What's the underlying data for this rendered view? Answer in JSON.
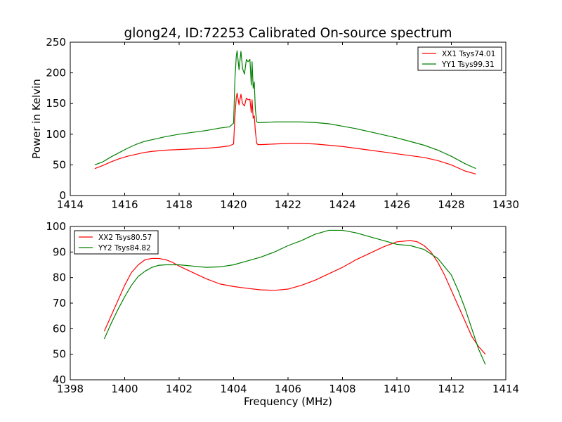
{
  "title": "glong24, ID:72253 Calibrated On-source spectrum",
  "colors": {
    "xx": "#ff0000",
    "yy": "#008000",
    "axes": "#000000",
    "background": "#ffffff"
  },
  "chart_data": [
    {
      "type": "line",
      "title": "glong24, ID:72253 Calibrated On-source spectrum",
      "xlabel": "",
      "ylabel": "Power in Kelvin",
      "xlim": [
        1414,
        1430
      ],
      "ylim": [
        0,
        250
      ],
      "xticks": [
        1414,
        1416,
        1418,
        1420,
        1422,
        1424,
        1426,
        1428,
        1430
      ],
      "yticks": [
        0,
        50,
        100,
        150,
        200,
        250
      ],
      "legend_position": "top-right",
      "grid": false,
      "series": [
        {
          "name": "XX1 Tsys74.01",
          "color": "#ff0000",
          "points": [
            [
              1414.9,
              44
            ],
            [
              1415.2,
              49
            ],
            [
              1415.5,
              55
            ],
            [
              1415.8,
              60
            ],
            [
              1416.1,
              64
            ],
            [
              1416.4,
              67
            ],
            [
              1416.7,
              70
            ],
            [
              1417.0,
              72
            ],
            [
              1417.5,
              74
            ],
            [
              1418.0,
              75
            ],
            [
              1418.5,
              76
            ],
            [
              1419.0,
              77
            ],
            [
              1419.5,
              79
            ],
            [
              1419.85,
              81
            ],
            [
              1420.0,
              84
            ],
            [
              1420.05,
              130
            ],
            [
              1420.1,
              160
            ],
            [
              1420.13,
              167
            ],
            [
              1420.2,
              148
            ],
            [
              1420.27,
              165
            ],
            [
              1420.33,
              150
            ],
            [
              1420.4,
              146
            ],
            [
              1420.47,
              159
            ],
            [
              1420.53,
              156
            ],
            [
              1420.6,
              157
            ],
            [
              1420.65,
              135
            ],
            [
              1420.68,
              156
            ],
            [
              1420.72,
              126
            ],
            [
              1420.76,
              130
            ],
            [
              1420.8,
              105
            ],
            [
              1420.85,
              85
            ],
            [
              1420.9,
              83
            ],
            [
              1421.0,
              83
            ],
            [
              1421.5,
              84
            ],
            [
              1422.0,
              85
            ],
            [
              1422.5,
              85
            ],
            [
              1423.0,
              84
            ],
            [
              1423.5,
              82
            ],
            [
              1424.0,
              80
            ],
            [
              1424.5,
              77
            ],
            [
              1425.0,
              74
            ],
            [
              1425.5,
              71
            ],
            [
              1426.0,
              68
            ],
            [
              1426.5,
              65
            ],
            [
              1427.0,
              62
            ],
            [
              1427.5,
              57
            ],
            [
              1428.0,
              50
            ],
            [
              1428.5,
              40
            ],
            [
              1428.9,
              35
            ]
          ]
        },
        {
          "name": "YY1 Tsys99.31",
          "color": "#008000",
          "points": [
            [
              1414.9,
              50
            ],
            [
              1415.2,
              55
            ],
            [
              1415.5,
              63
            ],
            [
              1415.8,
              70
            ],
            [
              1416.1,
              77
            ],
            [
              1416.4,
              83
            ],
            [
              1416.7,
              88
            ],
            [
              1417.0,
              91
            ],
            [
              1417.5,
              96
            ],
            [
              1418.0,
              100
            ],
            [
              1418.5,
              103
            ],
            [
              1419.0,
              106
            ],
            [
              1419.5,
              110
            ],
            [
              1419.85,
              112
            ],
            [
              1420.0,
              118
            ],
            [
              1420.05,
              190
            ],
            [
              1420.1,
              228
            ],
            [
              1420.13,
              236
            ],
            [
              1420.2,
              205
            ],
            [
              1420.27,
              235
            ],
            [
              1420.33,
              207
            ],
            [
              1420.4,
              198
            ],
            [
              1420.47,
              222
            ],
            [
              1420.53,
              218
            ],
            [
              1420.6,
              222
            ],
            [
              1420.65,
              180
            ],
            [
              1420.68,
              218
            ],
            [
              1420.72,
              175
            ],
            [
              1420.76,
              185
            ],
            [
              1420.8,
              140
            ],
            [
              1420.85,
              120
            ],
            [
              1420.9,
              119
            ],
            [
              1421.0,
              119
            ],
            [
              1421.5,
              120
            ],
            [
              1422.0,
              120
            ],
            [
              1422.5,
              120
            ],
            [
              1423.0,
              119
            ],
            [
              1423.5,
              117
            ],
            [
              1424.0,
              113
            ],
            [
              1424.5,
              109
            ],
            [
              1425.0,
              104
            ],
            [
              1425.5,
              99
            ],
            [
              1426.0,
              94
            ],
            [
              1426.5,
              88
            ],
            [
              1427.0,
              82
            ],
            [
              1427.5,
              74
            ],
            [
              1428.0,
              64
            ],
            [
              1428.5,
              52
            ],
            [
              1428.9,
              44
            ]
          ]
        }
      ]
    },
    {
      "type": "line",
      "title": "",
      "xlabel": "Frequency (MHz)",
      "ylabel": "",
      "xlim": [
        1398,
        1414
      ],
      "ylim": [
        40,
        100
      ],
      "xticks": [
        1398,
        1400,
        1402,
        1404,
        1406,
        1408,
        1410,
        1412,
        1414
      ],
      "yticks": [
        40,
        50,
        60,
        70,
        80,
        90,
        100
      ],
      "legend_position": "top-left",
      "grid": false,
      "series": [
        {
          "name": "XX2 Tsys80.57",
          "color": "#ff0000",
          "points": [
            [
              1399.25,
              59
            ],
            [
              1399.5,
              65
            ],
            [
              1399.75,
              71
            ],
            [
              1400.0,
              77
            ],
            [
              1400.25,
              82
            ],
            [
              1400.5,
              85
            ],
            [
              1400.75,
              87
            ],
            [
              1401.0,
              87.5
            ],
            [
              1401.25,
              87.5
            ],
            [
              1401.5,
              87
            ],
            [
              1401.75,
              86
            ],
            [
              1402.0,
              84.5
            ],
            [
              1402.5,
              82
            ],
            [
              1403.0,
              79.5
            ],
            [
              1403.5,
              77.5
            ],
            [
              1404.0,
              76.5
            ],
            [
              1404.5,
              75.8
            ],
            [
              1405.0,
              75.2
            ],
            [
              1405.5,
              75
            ],
            [
              1406.0,
              75.5
            ],
            [
              1406.5,
              77
            ],
            [
              1407.0,
              79
            ],
            [
              1407.5,
              81.5
            ],
            [
              1408.0,
              84
            ],
            [
              1408.5,
              87
            ],
            [
              1409.0,
              89.5
            ],
            [
              1409.5,
              92
            ],
            [
              1410.0,
              94
            ],
            [
              1410.5,
              94.5
            ],
            [
              1410.75,
              94
            ],
            [
              1411.0,
              92.5
            ],
            [
              1411.25,
              90
            ],
            [
              1411.5,
              86
            ],
            [
              1411.75,
              81
            ],
            [
              1412.0,
              75
            ],
            [
              1412.25,
              69
            ],
            [
              1412.5,
              63
            ],
            [
              1412.75,
              57
            ],
            [
              1413.0,
              53
            ],
            [
              1413.25,
              50
            ]
          ]
        },
        {
          "name": "YY2 Tsys84.82",
          "color": "#008000",
          "points": [
            [
              1399.25,
              56
            ],
            [
              1399.5,
              62
            ],
            [
              1399.75,
              67.5
            ],
            [
              1400.0,
              72.5
            ],
            [
              1400.25,
              77
            ],
            [
              1400.5,
              80.5
            ],
            [
              1400.75,
              82.5
            ],
            [
              1401.0,
              84
            ],
            [
              1401.25,
              84.8
            ],
            [
              1401.5,
              85
            ],
            [
              1402.0,
              85
            ],
            [
              1402.5,
              84.5
            ],
            [
              1403.0,
              84
            ],
            [
              1403.5,
              84.2
            ],
            [
              1404.0,
              85
            ],
            [
              1404.5,
              86.5
            ],
            [
              1405.0,
              88
            ],
            [
              1405.5,
              90
            ],
            [
              1406.0,
              92.5
            ],
            [
              1406.5,
              94.5
            ],
            [
              1407.0,
              97
            ],
            [
              1407.5,
              98.5
            ],
            [
              1408.0,
              98.5
            ],
            [
              1408.5,
              97.5
            ],
            [
              1409.0,
              96
            ],
            [
              1409.5,
              94.5
            ],
            [
              1410.0,
              93
            ],
            [
              1410.5,
              92.5
            ],
            [
              1411.0,
              91
            ],
            [
              1411.5,
              87.5
            ],
            [
              1412.0,
              81
            ],
            [
              1412.25,
              75
            ],
            [
              1412.5,
              68
            ],
            [
              1412.75,
              60
            ],
            [
              1413.0,
              52
            ],
            [
              1413.25,
              46
            ]
          ]
        }
      ]
    }
  ]
}
